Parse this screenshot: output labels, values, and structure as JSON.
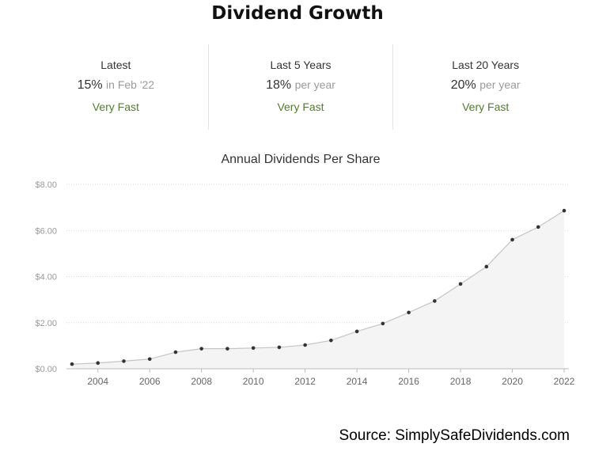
{
  "header": {
    "title": "Dividend Growth"
  },
  "stats": [
    {
      "label": "Latest",
      "value": "15%",
      "suffix": "in Feb '22",
      "rating": "Very Fast"
    },
    {
      "label": "Last 5 Years",
      "value": "18%",
      "suffix": "per year",
      "rating": "Very Fast"
    },
    {
      "label": "Last 20 Years",
      "value": "20%",
      "suffix": "per year",
      "rating": "Very Fast"
    }
  ],
  "colors": {
    "rating": "#4f7f2a",
    "line": "#c4c4c4",
    "area": "#f4f4f4",
    "point": "#333333"
  },
  "chart_data": {
    "type": "area",
    "title": "Annual Dividends Per Share",
    "xlabel": "",
    "ylabel": "",
    "x": [
      2003,
      2004,
      2005,
      2006,
      2007,
      2008,
      2009,
      2010,
      2011,
      2012,
      2013,
      2014,
      2015,
      2016,
      2017,
      2018,
      2019,
      2020,
      2021,
      2022
    ],
    "values": [
      0.2,
      0.25,
      0.33,
      0.42,
      0.72,
      0.87,
      0.87,
      0.9,
      0.93,
      1.03,
      1.23,
      1.62,
      1.96,
      2.44,
      2.94,
      3.68,
      4.43,
      5.6,
      6.15,
      6.86
    ],
    "xticks": [
      "2004",
      "2006",
      "2008",
      "2010",
      "2012",
      "2014",
      "2016",
      "2018",
      "2020",
      "2022"
    ],
    "yticks": [
      "$0.00",
      "$2.00",
      "$4.00",
      "$6.00",
      "$8.00"
    ],
    "xlim": [
      2003,
      2022
    ],
    "ylim": [
      0,
      8
    ],
    "grid": true,
    "legend": "none"
  },
  "footer": {
    "source": "Source: SimplySafeDividends.com"
  }
}
